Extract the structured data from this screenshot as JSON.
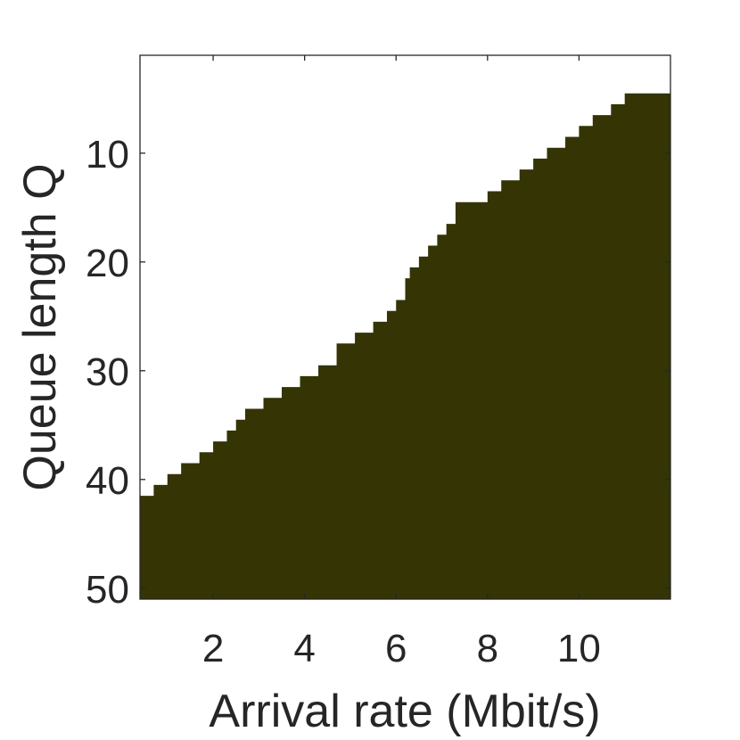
{
  "chart_data": {
    "type": "heatmap",
    "title": "",
    "xlabel": "Arrival rate (Mbit/s)",
    "ylabel": "Queue length Q",
    "xlim": [
      0.4,
      12.0
    ],
    "ylim": [
      1.0,
      51.0
    ],
    "y_reversed": true,
    "grid": false,
    "legend": "none",
    "x_ticks": [
      2,
      4,
      6,
      8,
      10
    ],
    "y_ticks": [
      10,
      20,
      30,
      40,
      50
    ],
    "fill_color": "#343404",
    "background_color": "#ffffff",
    "threshold": {
      "x": [
        0.4,
        0.7,
        1.0,
        1.3,
        1.7,
        2.0,
        2.3,
        2.5,
        2.7,
        3.1,
        3.5,
        3.9,
        4.3,
        4.7,
        5.1,
        5.5,
        5.8,
        6.0,
        6.2,
        6.3,
        6.5,
        6.7,
        6.9,
        7.1,
        7.3,
        7.5,
        8.0,
        8.3,
        8.7,
        9.0,
        9.3,
        9.7,
        10.0,
        10.3,
        10.7,
        11.0,
        11.5,
        12.0
      ],
      "q": [
        41.5,
        40.5,
        39.5,
        38.5,
        37.5,
        36.5,
        35.5,
        34.5,
        33.5,
        32.5,
        31.5,
        30.5,
        29.5,
        27.5,
        26.5,
        25.5,
        24.5,
        23.5,
        21.5,
        20.5,
        19.5,
        18.5,
        17.5,
        16.5,
        14.5,
        14.5,
        13.5,
        12.5,
        11.5,
        10.5,
        9.5,
        8.5,
        7.5,
        6.5,
        5.5,
        4.5,
        4.5,
        4.5
      ]
    }
  }
}
